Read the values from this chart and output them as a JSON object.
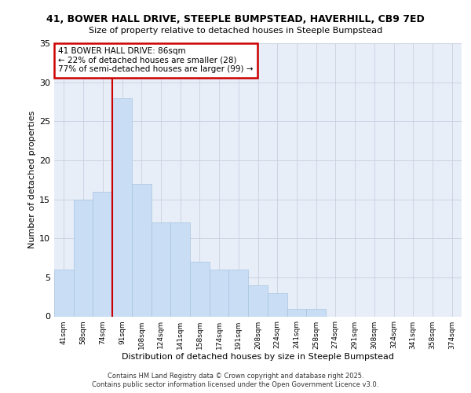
{
  "title1": "41, BOWER HALL DRIVE, STEEPLE BUMPSTEAD, HAVERHILL, CB9 7ED",
  "title2": "Size of property relative to detached houses in Steeple Bumpstead",
  "xlabel": "Distribution of detached houses by size in Steeple Bumpstead",
  "ylabel": "Number of detached properties",
  "bin_labels": [
    "41sqm",
    "58sqm",
    "74sqm",
    "91sqm",
    "108sqm",
    "124sqm",
    "141sqm",
    "158sqm",
    "174sqm",
    "191sqm",
    "208sqm",
    "224sqm",
    "241sqm",
    "258sqm",
    "274sqm",
    "291sqm",
    "308sqm",
    "324sqm",
    "341sqm",
    "358sqm",
    "374sqm"
  ],
  "bar_values": [
    6,
    15,
    16,
    28,
    17,
    12,
    12,
    7,
    6,
    6,
    4,
    3,
    1,
    1,
    0,
    0,
    0,
    0,
    0,
    0,
    0
  ],
  "bar_color": "#c9ddf5",
  "bar_edgecolor": "#a8c4e0",
  "annotation_title": "41 BOWER HALL DRIVE: 86sqm",
  "annotation_line1": "← 22% of detached houses are smaller (28)",
  "annotation_line2": "77% of semi-detached houses are larger (99) →",
  "annotation_box_color": "#cc0000",
  "ylim": [
    0,
    35
  ],
  "yticks": [
    0,
    5,
    10,
    15,
    20,
    25,
    30,
    35
  ],
  "footer1": "Contains HM Land Registry data © Crown copyright and database right 2025.",
  "footer2": "Contains public sector information licensed under the Open Government Licence v3.0.",
  "plot_bg": "#e8eef8",
  "grid_color": "#c8d0e0",
  "line_color": "#cc0000"
}
